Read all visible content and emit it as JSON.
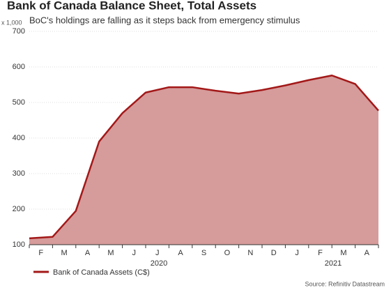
{
  "chart_data": {
    "type": "area",
    "title": "Bank of Canada Balance Sheet, Total Assets",
    "subtitle": "BoC's holdings are falling as it steps back from emergency stimulus",
    "y_unit": "x 1,000",
    "categories": [
      null,
      "F",
      "M",
      "A",
      "M",
      "J",
      "J",
      "A",
      "S",
      "O",
      "N",
      "D",
      "J",
      "F",
      "M",
      "A"
    ],
    "years": [
      "2020",
      "2021"
    ],
    "series": [
      {
        "name": "Bank of Canada Assets (C$)",
        "color": "#a31818",
        "fill": "#d69b9b",
        "values": [
          118,
          122,
          195,
          390,
          470,
          528,
          543,
          543,
          533,
          525,
          535,
          548,
          563,
          576,
          552,
          477
        ]
      }
    ],
    "ylim": [
      100,
      700
    ],
    "yticks": [
      100,
      200,
      300,
      400,
      500,
      600,
      700
    ],
    "grid": true,
    "source": "Source: Refinitiv Datastream"
  }
}
